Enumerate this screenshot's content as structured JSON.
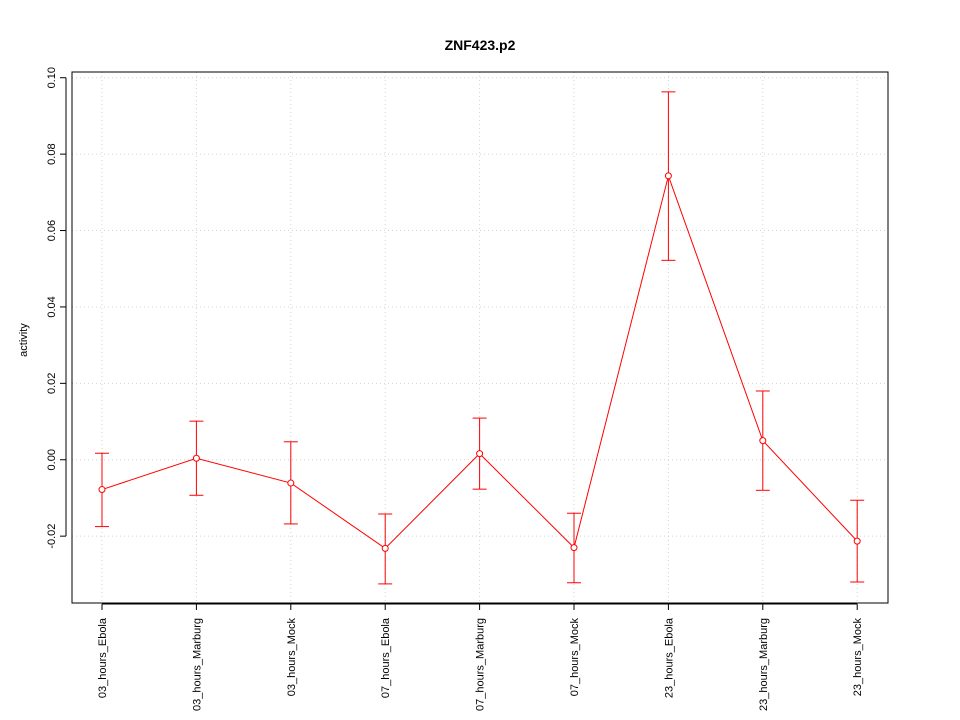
{
  "chart_data": {
    "type": "line",
    "title": "ZNF423.p2",
    "xlabel": "",
    "ylabel": "activity",
    "categories": [
      "03_hours_Ebola",
      "03_hours_Marburg",
      "03_hours_Mock",
      "07_hours_Ebola",
      "07_hours_Marburg",
      "07_hours_Mock",
      "23_hours_Ebola",
      "23_hours_Marburg",
      "23_hours_Mock"
    ],
    "series": [
      {
        "values": [
          -0.0078,
          0.0004,
          -0.0061,
          -0.0232,
          0.0016,
          -0.023,
          0.0743,
          0.005,
          -0.0213
        ],
        "err_low": [
          -0.0175,
          -0.0093,
          -0.0168,
          -0.0325,
          -0.0077,
          -0.0322,
          0.0522,
          -0.008,
          -0.032
        ],
        "err_high": [
          0.0017,
          0.0101,
          0.0047,
          -0.0142,
          0.0109,
          -0.014,
          0.0963,
          0.018,
          -0.0106
        ]
      }
    ],
    "ylim": [
      -0.0375,
      0.1015
    ],
    "yticks": [
      "0.10",
      "0.08",
      "0.06",
      "0.04",
      "0.02",
      "0.00",
      "-0.02"
    ],
    "ytick_values": [
      0.1,
      0.08,
      0.06,
      0.04,
      0.02,
      0.0,
      -0.02
    ],
    "grid": true,
    "colors": {
      "series": "#ff0000",
      "grid": "#d3d3d3",
      "axis": "#000000"
    }
  }
}
